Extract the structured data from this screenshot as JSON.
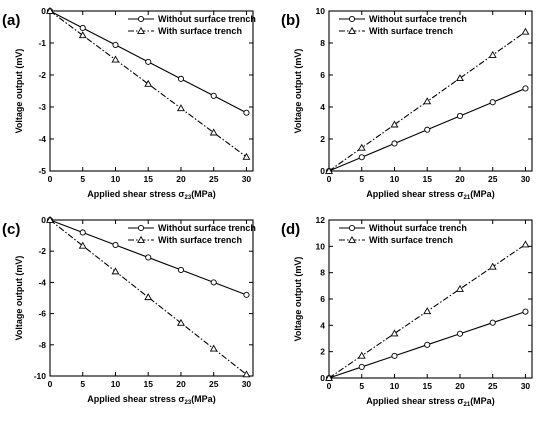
{
  "chart_data": [
    {
      "panel": "(a)",
      "type": "line",
      "xlabel": "Applied shear stress σ",
      "xlabel_sub": "23",
      "xlabel_unit": "(MPa)",
      "ylabel": "Voltage output (mV)",
      "xlim": [
        0,
        31
      ],
      "ylim": [
        -5,
        0
      ],
      "xticks": [
        0,
        5,
        10,
        15,
        20,
        25,
        30
      ],
      "yticks": [
        -5,
        -4,
        -3,
        -2,
        -1,
        0
      ],
      "legend": "top-right",
      "x": [
        0,
        5,
        10,
        15,
        20,
        25,
        30
      ],
      "series": [
        {
          "name": "Without surface trench",
          "marker": "circle",
          "dash": "solid",
          "values": [
            0,
            -0.53,
            -1.06,
            -1.59,
            -2.12,
            -2.65,
            -3.18
          ]
        },
        {
          "name": "With surface trench",
          "marker": "triangle",
          "dash": "dashdot",
          "values": [
            0,
            -0.76,
            -1.52,
            -2.28,
            -3.04,
            -3.8,
            -4.56
          ]
        }
      ]
    },
    {
      "panel": "(b)",
      "type": "line",
      "xlabel": "Applied shear stress σ",
      "xlabel_sub": "21",
      "xlabel_unit": "(MPa)",
      "ylabel": "Voltage output (mV)",
      "xlim": [
        0,
        31
      ],
      "ylim": [
        0,
        10
      ],
      "xticks": [
        0,
        5,
        10,
        15,
        20,
        25,
        30
      ],
      "yticks": [
        0,
        2,
        4,
        6,
        8,
        10
      ],
      "legend": "top-left",
      "x": [
        0,
        5,
        10,
        15,
        20,
        25,
        30
      ],
      "series": [
        {
          "name": "Without surface trench",
          "marker": "circle",
          "dash": "solid",
          "values": [
            0,
            0.86,
            1.72,
            2.58,
            3.44,
            4.3,
            5.16
          ]
        },
        {
          "name": "With surface trench",
          "marker": "triangle",
          "dash": "dashdot",
          "values": [
            0,
            1.45,
            2.9,
            4.35,
            5.8,
            7.25,
            8.7
          ]
        }
      ]
    },
    {
      "panel": "(c)",
      "type": "line",
      "xlabel": "Applied shear stress σ",
      "xlabel_sub": "23",
      "xlabel_unit": "(MPa)",
      "ylabel": "Voltage output (mV)",
      "xlim": [
        0,
        31
      ],
      "ylim": [
        -10,
        0
      ],
      "xticks": [
        0,
        5,
        10,
        15,
        20,
        25,
        30
      ],
      "yticks": [
        -10,
        -8,
        -6,
        -4,
        -2,
        0
      ],
      "legend": "top-right",
      "x": [
        0,
        5,
        10,
        15,
        20,
        25,
        30
      ],
      "series": [
        {
          "name": "Without surface trench",
          "marker": "circle",
          "dash": "solid",
          "values": [
            0,
            -0.8,
            -1.6,
            -2.4,
            -3.2,
            -4.0,
            -4.8
          ]
        },
        {
          "name": "With surface trench",
          "marker": "triangle",
          "dash": "dashdot",
          "values": [
            0,
            -1.65,
            -3.3,
            -4.95,
            -6.6,
            -8.25,
            -9.9
          ]
        }
      ]
    },
    {
      "panel": "(d)",
      "type": "line",
      "xlabel": "Applied shear stress σ",
      "xlabel_sub": "21",
      "xlabel_unit": "(MPa)",
      "ylabel": "Voltage output (mV)",
      "xlim": [
        0,
        31
      ],
      "ylim": [
        0,
        12
      ],
      "xticks": [
        0,
        5,
        10,
        15,
        20,
        25,
        30
      ],
      "yticks": [
        0,
        2,
        4,
        6,
        8,
        10,
        12
      ],
      "legend": "top-left",
      "x": [
        0,
        5,
        10,
        15,
        20,
        25,
        30
      ],
      "series": [
        {
          "name": "Without surface trench",
          "marker": "circle",
          "dash": "solid",
          "values": [
            0,
            0.84,
            1.68,
            2.52,
            3.36,
            4.2,
            5.04
          ]
        },
        {
          "name": "With surface trench",
          "marker": "triangle",
          "dash": "dashdot",
          "values": [
            0,
            1.69,
            3.38,
            5.07,
            6.76,
            8.45,
            10.14
          ]
        }
      ]
    }
  ]
}
